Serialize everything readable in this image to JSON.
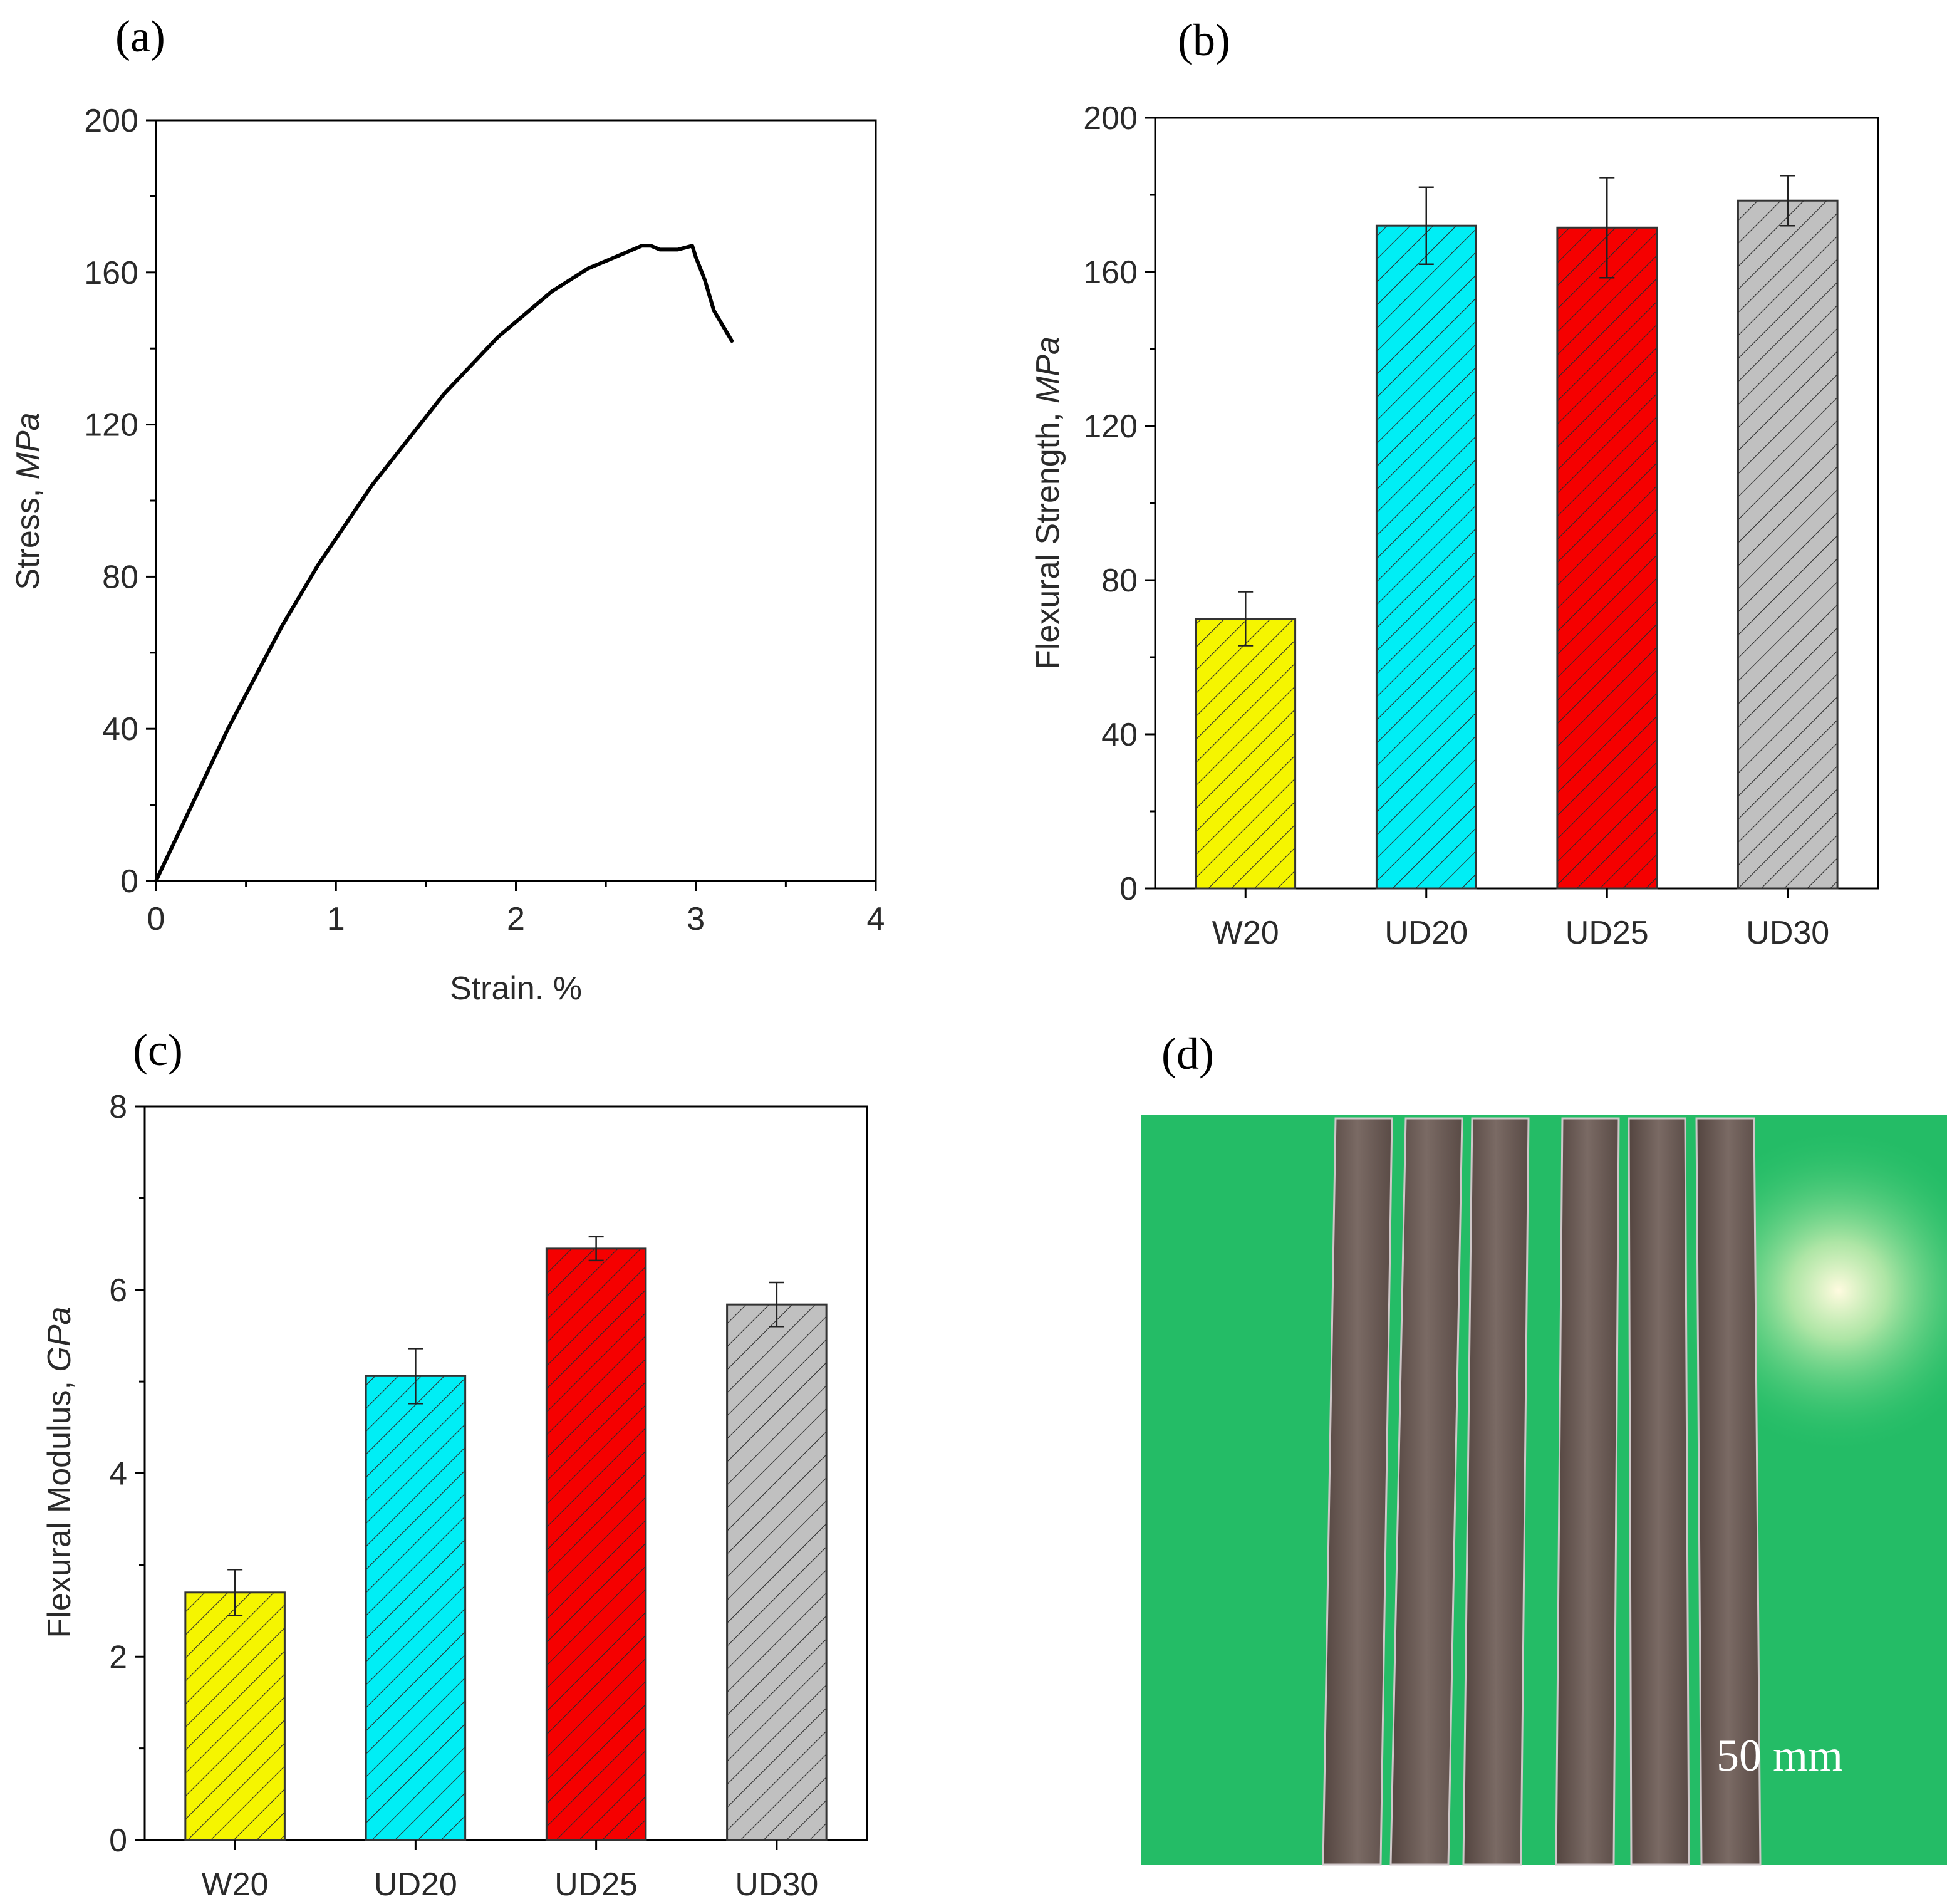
{
  "panels": {
    "a": {
      "label": "(a)"
    },
    "b": {
      "label": "(b)"
    },
    "c": {
      "label": "(c)"
    },
    "d": {
      "label": "(d)",
      "scale_text": "50 mm",
      "photo": "green-background-with-six-composite-strips",
      "photo_colors": {
        "background": "#27c46c",
        "strip": "#6b5a53",
        "strip_edge": "#cfc6c8"
      }
    }
  },
  "chart_data": [
    {
      "id": "a",
      "type": "line",
      "title": "",
      "xlabel": "Strain. %",
      "ylabel": "Stress, ",
      "ylabel_italic": "MPa",
      "xlim": [
        0,
        4
      ],
      "ylim": [
        0,
        200
      ],
      "xticks": [
        0,
        1,
        2,
        3,
        4
      ],
      "yticks": [
        0,
        40,
        80,
        120,
        160,
        200
      ],
      "xtick_labels": [
        "0",
        "1",
        "2",
        "3",
        "4"
      ],
      "ytick_labels": [
        "0",
        "40",
        "80",
        "120",
        "160",
        "200"
      ],
      "series": [
        {
          "name": "stress-strain",
          "color": "#000000",
          "x": [
            0,
            0.1,
            0.2,
            0.3,
            0.4,
            0.5,
            0.6,
            0.7,
            0.8,
            0.9,
            1.0,
            1.1,
            1.2,
            1.3,
            1.4,
            1.5,
            1.6,
            1.7,
            1.8,
            1.9,
            2.0,
            2.1,
            2.2,
            2.3,
            2.4,
            2.5,
            2.6,
            2.7,
            2.75,
            2.8,
            2.9,
            2.98,
            3.0,
            3.05,
            3.1,
            3.15,
            3.2
          ],
          "y": [
            0,
            10,
            20,
            30,
            40,
            49,
            58,
            67,
            75,
            83,
            90,
            97,
            104,
            110,
            116,
            122,
            128,
            133,
            138,
            143,
            147,
            151,
            155,
            158,
            161,
            163,
            165,
            167,
            167,
            166,
            166,
            167,
            164,
            158,
            150,
            146,
            142
          ]
        }
      ]
    },
    {
      "id": "b",
      "type": "bar",
      "title": "",
      "xlabel": "",
      "ylabel": "Flexural Strength, ",
      "ylabel_italic": "MPa",
      "ylim": [
        0,
        200
      ],
      "yticks": [
        0,
        40,
        80,
        120,
        160,
        200
      ],
      "ytick_labels": [
        "0",
        "40",
        "80",
        "120",
        "160",
        "200"
      ],
      "categories": [
        "W20",
        "UD20",
        "UD25",
        "UD30"
      ],
      "values": [
        70,
        172,
        171.5,
        178.5
      ],
      "errors": [
        7,
        10,
        13,
        6.5
      ],
      "colors": [
        "#f5f500",
        "#00eef5",
        "#f50000",
        "#c0c0c0"
      ]
    },
    {
      "id": "c",
      "type": "bar",
      "title": "",
      "xlabel": "",
      "ylabel": "Flexural Modulus, ",
      "ylabel_italic": "GPa",
      "ylim": [
        0,
        8
      ],
      "yticks": [
        0,
        2,
        4,
        6,
        8
      ],
      "ytick_labels": [
        "0",
        "2",
        "4",
        "6",
        "8"
      ],
      "categories": [
        "W20",
        "UD20",
        "UD25",
        "UD30"
      ],
      "values": [
        2.7,
        5.06,
        6.45,
        5.84
      ],
      "errors": [
        0.25,
        0.3,
        0.13,
        0.24
      ],
      "colors": [
        "#f5f500",
        "#00eef5",
        "#f50000",
        "#c0c0c0"
      ]
    }
  ]
}
